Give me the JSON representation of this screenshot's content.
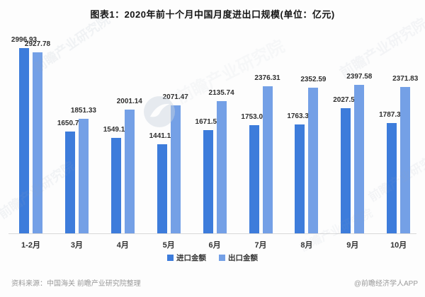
{
  "chart_data": {
    "type": "bar",
    "title": "图表1：2020年前十个月中国月度进出口规模(单位：亿元)",
    "unit": "亿元",
    "categories": [
      "1-2月",
      "3月",
      "4月",
      "5月",
      "6月",
      "7月",
      "8月",
      "9月",
      "10月"
    ],
    "series": [
      {
        "name": "进口金额",
        "color": "#3d7cdb",
        "values": [
          2996.93,
          1650.74,
          1549.12,
          1441.15,
          1671.53,
          1753.02,
          1763.34,
          2027.59,
          1787.39
        ]
      },
      {
        "name": "出口金额",
        "color": "#74a0e6",
        "values": [
          2927.78,
          1851.33,
          2001.14,
          2071.47,
          2135.74,
          2376.31,
          2352.59,
          2397.58,
          2371.83
        ]
      }
    ],
    "ylim": [
      0,
      3100
    ],
    "grid": false,
    "y_axis_visible": false,
    "legend_position": "bottom",
    "data_labels": true
  },
  "footer": {
    "source": "资料来源：中国海关 前瞻产业研究院整理",
    "brand": "@前瞻经济学人APP"
  },
  "watermark": {
    "text": "前瞻产业研究院",
    "logo": "qianzhan-circle-logo"
  }
}
